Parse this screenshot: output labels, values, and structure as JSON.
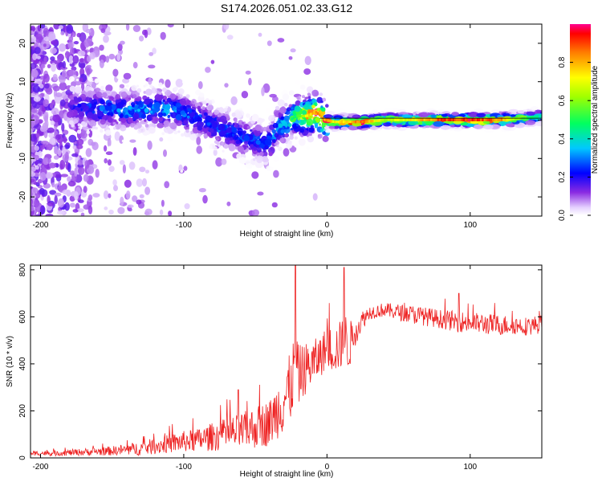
{
  "title": "S174.2026.051.02.33.G12",
  "chart_data": [
    {
      "type": "heatmap",
      "title": "S174.2026.051.02.33.G12",
      "xlabel": "Height of straight line (km)",
      "ylabel": "Frequency (Hz)",
      "xlim": [
        -207,
        150
      ],
      "ylim": [
        -25,
        25
      ],
      "xticks": [
        -200,
        -100,
        0,
        100
      ],
      "yticks": [
        -20,
        -10,
        0,
        10,
        20
      ],
      "ridge": {
        "x": [
          -207,
          -190,
          -175,
          -160,
          -140,
          -120,
          -105,
          -90,
          -75,
          -60,
          -50,
          -40,
          -35,
          -30,
          -22,
          -15,
          -8,
          -2,
          5,
          12,
          25,
          40,
          60,
          80,
          100,
          120,
          140,
          150
        ],
        "freq": [
          5,
          4,
          3.5,
          3,
          2.5,
          3,
          2.5,
          0.5,
          -2,
          -4,
          -5.5,
          -6,
          -2,
          -1,
          1,
          1,
          2,
          0,
          -0.5,
          -0.5,
          -0.5,
          0,
          0,
          0,
          0,
          0,
          0.5,
          1
        ],
        "amplitude": [
          0.05,
          0.1,
          0.2,
          0.25,
          0.3,
          0.3,
          0.3,
          0.25,
          0.25,
          0.25,
          0.25,
          0.3,
          0.3,
          0.35,
          0.5,
          0.7,
          0.9,
          0.85,
          0.75,
          0.8,
          0.85,
          0.65,
          0.75,
          0.9,
          0.95,
          0.85,
          0.5,
          0.4
        ]
      },
      "colorbar": {
        "label": "Normalized spectral amplitude",
        "ticks": [
          "0.0",
          "0.2",
          "0.4",
          "0.6",
          "0.8"
        ],
        "range": [
          0,
          1
        ]
      }
    },
    {
      "type": "line",
      "xlabel": "Height of straight line (km)",
      "ylabel": "SNR (10 * v/v)",
      "xlim": [
        -207,
        150
      ],
      "ylim": [
        0,
        820
      ],
      "xticks": [
        -200,
        -100,
        0,
        100
      ],
      "yticks": [
        0,
        200,
        400,
        600,
        800
      ],
      "series": [
        {
          "name": "SNR",
          "color": "#ee2222",
          "x": [
            -207,
            -190,
            -170,
            -150,
            -130,
            -110,
            -100,
            -90,
            -80,
            -70,
            -60,
            -50,
            -40,
            -35,
            -30,
            -25,
            -22,
            -20,
            -15,
            -10,
            -5,
            0,
            5,
            10,
            13,
            15,
            20,
            25,
            30,
            40,
            50,
            60,
            70,
            80,
            90,
            100,
            110,
            120,
            130,
            140,
            150
          ],
          "values": [
            20,
            20,
            25,
            30,
            40,
            60,
            70,
            75,
            90,
            100,
            110,
            130,
            150,
            200,
            250,
            300,
            420,
            350,
            380,
            400,
            430,
            470,
            460,
            480,
            500,
            470,
            540,
            590,
            620,
            630,
            620,
            610,
            600,
            590,
            580,
            575,
            570,
            565,
            565,
            560,
            570
          ],
          "noise": [
            10,
            12,
            15,
            20,
            30,
            40,
            45,
            50,
            60,
            70,
            80,
            90,
            100,
            120,
            150,
            150,
            140,
            130,
            110,
            100,
            90,
            90,
            100,
            110,
            120,
            110,
            60,
            40,
            30,
            30,
            35,
            40,
            40,
            40,
            45,
            45,
            45,
            45,
            40,
            40,
            40
          ],
          "spikes": [
            {
              "x": -62,
              "y": 290
            },
            {
              "x": -22,
              "y": 820
            },
            {
              "x": 12,
              "y": 810
            },
            {
              "x": 92,
              "y": 700
            }
          ]
        }
      ]
    }
  ]
}
